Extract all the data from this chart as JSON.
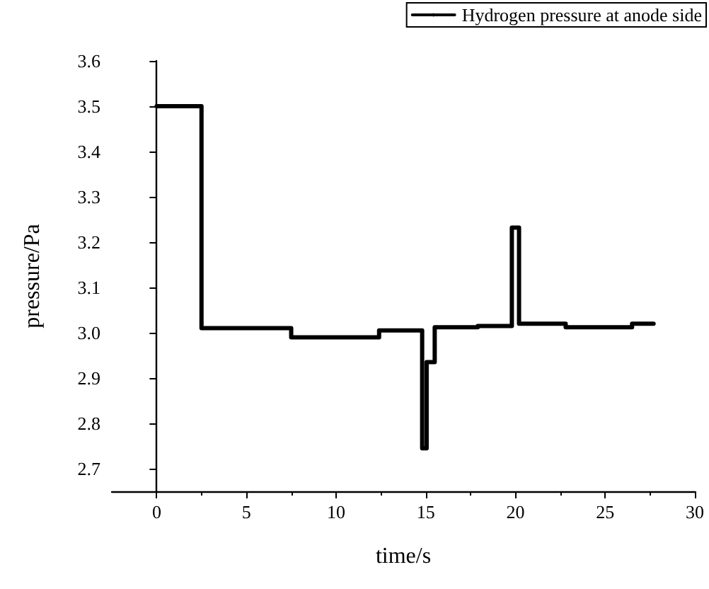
{
  "chart_data": {
    "type": "step",
    "xlabel": "time/s",
    "ylabel": "pressure/Pa",
    "x": [
      0,
      2.5,
      7.5,
      12.4,
      14.8,
      15.05,
      15.5,
      17.9,
      19.8,
      20.2,
      22.8,
      26.5,
      27.7
    ],
    "series": [
      {
        "name": "Hydrogen pressure at anode side",
        "color": "#000000",
        "values": [
          3.5,
          3.01,
          2.99,
          3.005,
          2.745,
          2.935,
          3.012,
          3.015,
          3.232,
          3.02,
          3.012,
          3.02,
          3.02
        ]
      }
    ],
    "xlim": [
      -2.5,
      30
    ],
    "xticks": [
      0,
      5,
      10,
      15,
      20,
      25,
      30
    ],
    "ylim": [
      2.65,
      3.6
    ],
    "yticks": [
      2.7,
      2.8,
      2.9,
      {
        "value": 3,
        "label": "3.0"
      },
      3.1,
      3.2,
      3.3,
      3.4,
      3.5,
      3.6
    ],
    "legend": "top right",
    "marker": "none",
    "line_style": "solid"
  }
}
